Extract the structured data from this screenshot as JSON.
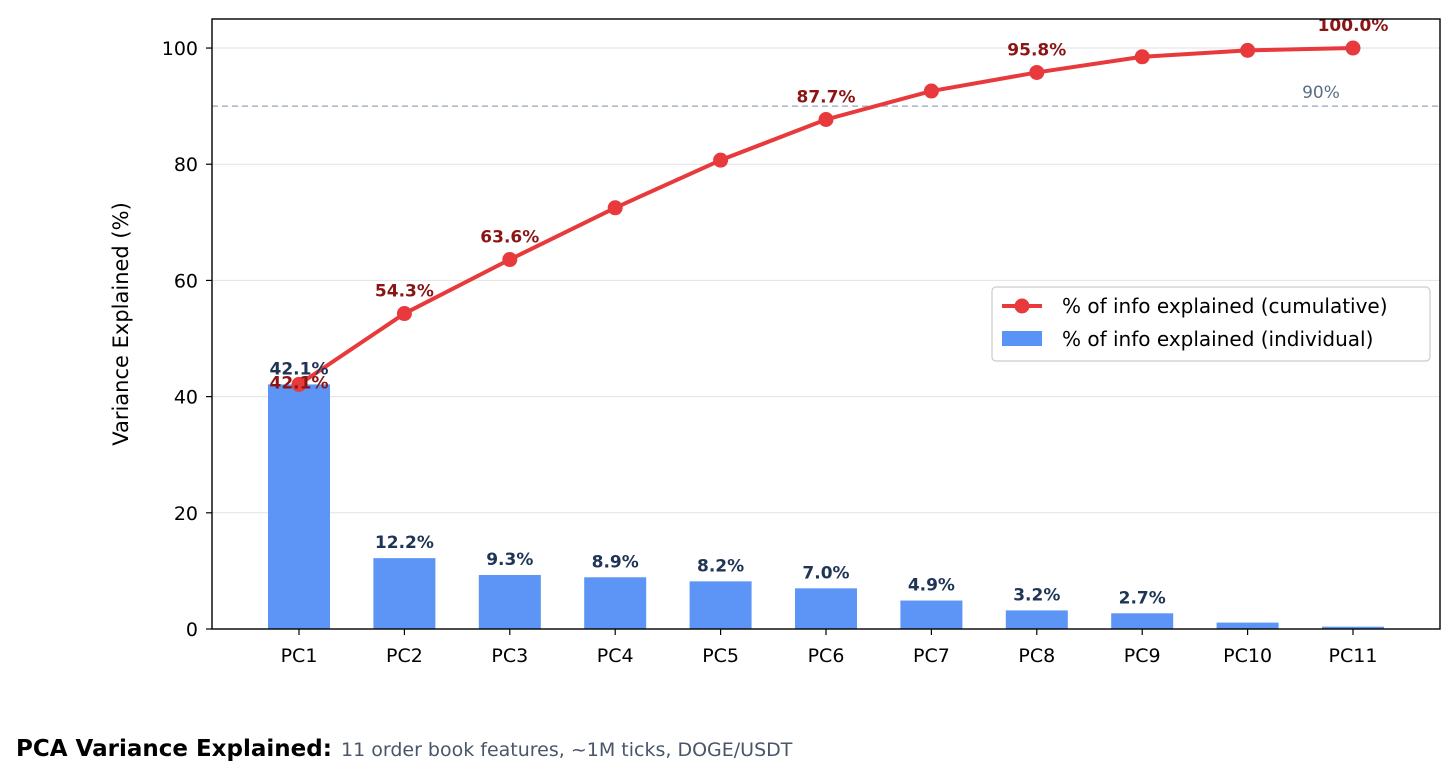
{
  "chart_data": {
    "type": "bar",
    "categories": [
      "PC1",
      "PC2",
      "PC3",
      "PC4",
      "PC5",
      "PC6",
      "PC7",
      "PC8",
      "PC9",
      "PC10",
      "PC11"
    ],
    "ylabel": "Variance Explained (%)",
    "xlabel": "",
    "ylim": [
      0,
      105
    ],
    "yticks": [
      0,
      20,
      40,
      60,
      80,
      100
    ],
    "grid": "horizontal",
    "legend_position": "center-right",
    "series": [
      {
        "name": "% of info explained (cumulative)",
        "kind": "line",
        "color": "#e8393c",
        "values": [
          42.1,
          54.3,
          63.6,
          72.5,
          80.7,
          87.7,
          92.6,
          95.8,
          98.5,
          99.6,
          100.0
        ],
        "labels": [
          "42.1%",
          "54.3%",
          "63.6%",
          "",
          "",
          "87.7%",
          "",
          "95.8%",
          "",
          "",
          "100.0%"
        ]
      },
      {
        "name": "% of info explained (individual)",
        "kind": "bar",
        "color": "#5993f5",
        "values": [
          42.1,
          12.2,
          9.3,
          8.9,
          8.2,
          7.0,
          4.9,
          3.2,
          2.7,
          1.1,
          0.4
        ],
        "labels": [
          "42.1%",
          "12.2%",
          "9.3%",
          "8.9%",
          "8.2%",
          "7.0%",
          "4.9%",
          "3.2%",
          "2.7%",
          "",
          ""
        ]
      }
    ],
    "reference_line": {
      "value": 90,
      "label": "90%",
      "color": "#a8b4c4"
    }
  },
  "caption": {
    "title": "PCA Variance Explained:",
    "subtitle": "11 order book features, ~1M ticks, DOGE/USDT"
  }
}
